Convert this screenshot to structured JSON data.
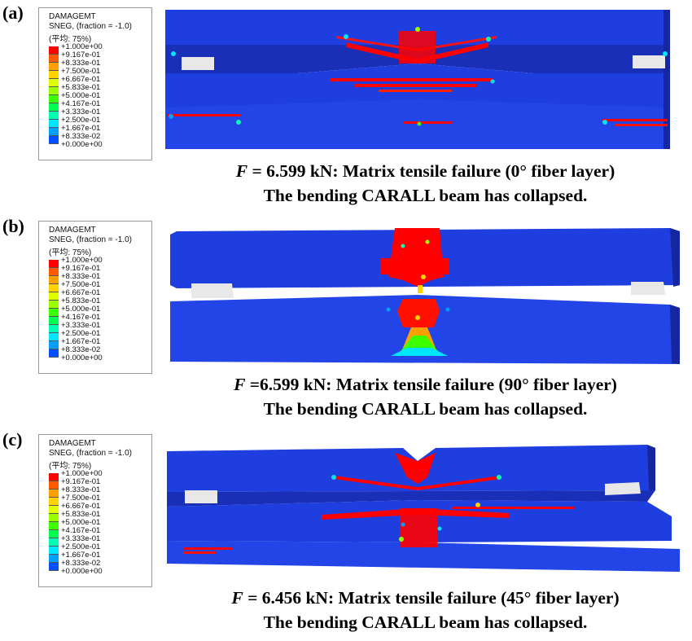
{
  "legend": {
    "title": "DAMAGEMT",
    "line2": "SNEG, (fraction = -1.0)",
    "line3": "(平均: 75%)",
    "values": [
      "+1.000e+00",
      "+9.167e-01",
      "+8.333e-01",
      "+7.500e-01",
      "+6.667e-01",
      "+5.833e-01",
      "+5.000e-01",
      "+4.167e-01",
      "+3.333e-01",
      "+2.500e-01",
      "+1.667e-01",
      "+8.333e-02",
      "+0.000e+00"
    ],
    "colors": [
      "#ff0000",
      "#ff5a00",
      "#ffa000",
      "#ffd200",
      "#e0ff00",
      "#9cff00",
      "#3cff00",
      "#00ff50",
      "#00ffb4",
      "#00e6ff",
      "#00a0ff",
      "#0050ff",
      "#0000ff"
    ]
  },
  "panels": [
    {
      "label": "(a)",
      "caption_f": "F",
      "caption_rest": " = 6.599 kN: Matrix tensile failure (0° fiber layer)",
      "caption_line2": "The bending CARALL beam has collapsed."
    },
    {
      "label": "(b)",
      "caption_f": "F",
      "caption_rest": " =6.599 kN: Matrix tensile failure (90° fiber layer)",
      "caption_line2": "The bending CARALL beam has collapsed."
    },
    {
      "label": "(c)",
      "caption_f": "F",
      "caption_rest": " = 6.456 kN: Matrix tensile failure (45° fiber layer)",
      "caption_line2": "The bending CARALL beam has collapsed."
    }
  ]
}
